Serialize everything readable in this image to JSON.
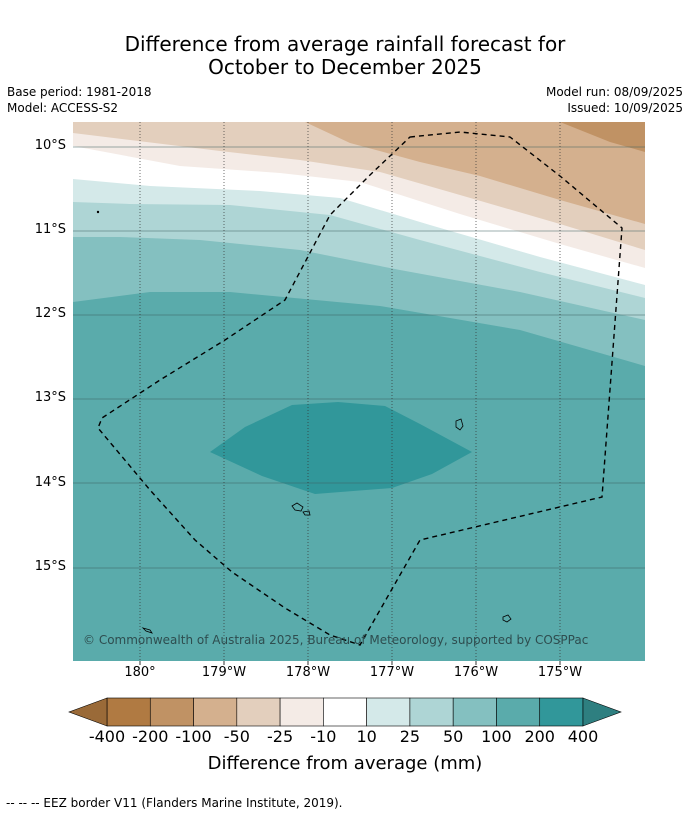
{
  "title": {
    "line1": "Difference from average rainfall forecast for",
    "line2": "October to December 2025"
  },
  "meta": {
    "base_period": "Base period: 1981-2018",
    "model": "Model: ACCESS-S2",
    "model_run": "Model run: 08/09/2025",
    "issued": "Issued: 10/09/2025"
  },
  "map": {
    "lat_labels": [
      "10°S",
      "11°S",
      "12°S",
      "13°S",
      "14°S",
      "15°S"
    ],
    "lon_labels": [
      "180°",
      "179°W",
      "178°W",
      "177°W",
      "176°W",
      "175°W"
    ],
    "copyright": "© Commonwealth of Australia 2025, Bureau of Meteorology, supported by COSPPac",
    "colors": {
      "ocean_base": "#5aabab",
      "c_neg100": "#d4b08e",
      "c_neg50": "#e3cfbd",
      "c_neg25": "#f4ebe6",
      "c_neg100_dark": "#c09264",
      "c_10": "#ffffff",
      "c_25": "#d4e9e9",
      "c_50": "#aed5d5",
      "c_100": "#84c0c0",
      "c_200": "#5aabab",
      "c_400": "#31979a"
    }
  },
  "colorbar": {
    "ticks": [
      "-400",
      "-200",
      "-100",
      "-50",
      "-25",
      "-10",
      "10",
      "25",
      "50",
      "100",
      "200",
      "400"
    ],
    "colors": [
      "#b07a42",
      "#c09264",
      "#d4b08e",
      "#e3cfbd",
      "#f4ebe6",
      "#ffffff",
      "#d4e9e9",
      "#aed5d5",
      "#84c0c0",
      "#5aabab",
      "#31979a"
    ],
    "low_extend": "#9a6a38",
    "high_extend": "#2e7f80",
    "label": "Difference from average (mm)"
  },
  "footnote": "--  --  -- EEZ border V11 (Flanders Marine Institute, 2019)."
}
